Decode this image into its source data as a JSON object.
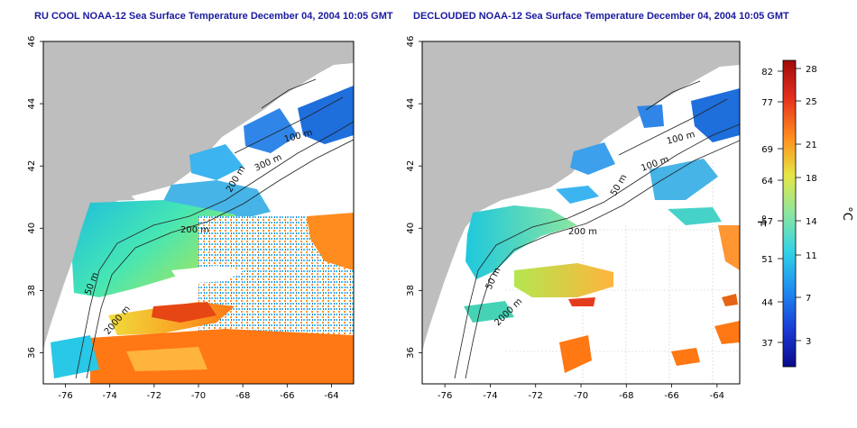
{
  "panels": [
    {
      "title": "RU COOL NOAA-12 Sea Surface Temperature December 04, 2004 10:05 GMT",
      "x_ticks": [
        "-76",
        "-74",
        "-72",
        "-70",
        "-68",
        "-66",
        "-64"
      ],
      "y_ticks": [
        "36",
        "38",
        "40",
        "42",
        "44",
        "46"
      ],
      "contours": [
        "100 m",
        "300 m",
        "200 m",
        "200 m",
        "50 m",
        "2000 m"
      ]
    },
    {
      "title": "DECLOUDED NOAA-12 Sea Surface Temperature December 04, 2004 10:05 GMT",
      "x_ticks": [
        "-76",
        "-74",
        "-72",
        "-70",
        "-68",
        "-66",
        "-64"
      ],
      "y_ticks": [
        "36",
        "38",
        "40",
        "42",
        "44",
        "46"
      ],
      "contours": [
        "100 m",
        "100 m",
        "50 m",
        "200 m",
        "50 m",
        "2000 m"
      ]
    }
  ],
  "colorbar": {
    "f_label": "°F",
    "c_label": "°C",
    "f_ticks": [
      "82",
      "77",
      "69",
      "64",
      "57",
      "51",
      "44",
      "37"
    ],
    "c_ticks": [
      "28",
      "25",
      "21",
      "18",
      "14",
      "11",
      "7",
      "3"
    ],
    "colors": [
      "#0a0a8c",
      "#1a3cd6",
      "#1e8cf0",
      "#33d2e6",
      "#8ce6a0",
      "#e6e646",
      "#ff8c1e",
      "#e6321e",
      "#a00a0a"
    ]
  },
  "colors": {
    "land": "#bebebe",
    "title": "#1a1aa0"
  }
}
